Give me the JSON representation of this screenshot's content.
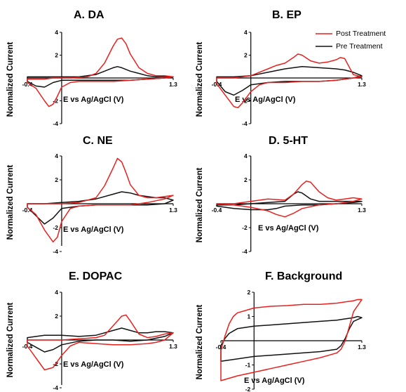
{
  "figure": {
    "legend": {
      "placement": "top-right",
      "entries": [
        {
          "name": "Post Treatment",
          "color": "#e8211f"
        },
        {
          "name": "Pre Treatment",
          "color": "#111111"
        }
      ]
    }
  },
  "chart_data": [
    {
      "type": "line",
      "title": "A. DA",
      "xlabel": "E vs Ag/AgCl (V)",
      "ylabel": "Normalized Current",
      "xlim": [
        -0.4,
        1.3
      ],
      "ylim": [
        -4,
        4
      ],
      "x_ticks": [
        "-0.4",
        "1.3"
      ],
      "y_ticks": [
        "4",
        "2",
        "-2",
        "-4"
      ],
      "grid": false,
      "series": [
        {
          "name": "Post Treatment",
          "color": "#e8211f",
          "x": [
            -0.4,
            -0.3,
            -0.2,
            -0.1,
            0.0,
            0.1,
            0.2,
            0.3,
            0.4,
            0.5,
            0.6,
            0.65,
            0.7,
            0.75,
            0.8,
            0.9,
            1.0,
            1.1,
            1.2,
            1.3,
            1.2,
            1.0,
            0.8,
            0.6,
            0.4,
            0.2,
            0.1,
            0.0,
            -0.05,
            -0.1,
            -0.15,
            -0.2,
            -0.3,
            -0.4
          ],
          "y": [
            -0.1,
            -0.1,
            -0.1,
            0.0,
            0.0,
            0.0,
            0.05,
            0.1,
            0.4,
            1.3,
            2.8,
            3.4,
            3.5,
            3.0,
            2.1,
            0.9,
            0.4,
            0.2,
            0.2,
            0.1,
            0.0,
            -0.1,
            -0.2,
            -0.3,
            -0.3,
            -0.3,
            -0.4,
            -0.8,
            -1.6,
            -2.3,
            -2.5,
            -2.0,
            -0.9,
            -0.4
          ]
        },
        {
          "name": "Pre Treatment",
          "color": "#111111",
          "x": [
            -0.4,
            -0.2,
            0.0,
            0.2,
            0.4,
            0.5,
            0.6,
            0.65,
            0.7,
            0.8,
            0.9,
            1.0,
            1.1,
            1.2,
            1.3,
            1.2,
            1.0,
            0.8,
            0.6,
            0.4,
            0.2,
            0.0,
            -0.1,
            -0.2,
            -0.3,
            -0.4
          ],
          "y": [
            0.1,
            0.1,
            0.1,
            0.1,
            0.3,
            0.6,
            0.9,
            1.0,
            0.9,
            0.6,
            0.4,
            0.2,
            0.1,
            0.1,
            0.1,
            0.0,
            -0.1,
            -0.2,
            -0.2,
            -0.2,
            -0.2,
            -0.2,
            -0.4,
            -0.8,
            -0.7,
            -0.3
          ]
        }
      ]
    },
    {
      "type": "line",
      "title": "B. EP",
      "xlabel": "E vs Ag/AgCl (V)",
      "ylabel": "Normalized Current",
      "xlim": [
        -0.4,
        1.3
      ],
      "ylim": [
        -4,
        4
      ],
      "x_ticks": [
        "-0.4",
        "1.3"
      ],
      "y_ticks": [
        "4",
        "2",
        "-2",
        "-4"
      ],
      "grid": false,
      "series": [
        {
          "name": "Post Treatment",
          "color": "#e8211f",
          "x": [
            -0.4,
            -0.2,
            0.0,
            0.2,
            0.3,
            0.4,
            0.5,
            0.55,
            0.6,
            0.7,
            0.8,
            0.9,
            1.0,
            1.05,
            1.1,
            1.15,
            1.2,
            1.3,
            1.2,
            1.0,
            0.8,
            0.6,
            0.4,
            0.2,
            0.1,
            0.0,
            -0.1,
            -0.15,
            -0.2,
            -0.3,
            -0.4
          ],
          "y": [
            0.0,
            0.0,
            0.2,
            0.8,
            1.1,
            1.3,
            1.8,
            2.1,
            2.0,
            1.5,
            1.3,
            1.4,
            1.6,
            1.8,
            1.7,
            1.0,
            0.3,
            0.1,
            0.0,
            -0.2,
            -0.3,
            -0.3,
            -0.4,
            -0.4,
            -0.6,
            -1.2,
            -2.2,
            -2.6,
            -2.5,
            -1.5,
            -0.5
          ]
        },
        {
          "name": "Pre Treatment",
          "color": "#111111",
          "x": [
            -0.4,
            -0.2,
            0.0,
            0.2,
            0.4,
            0.6,
            0.8,
            1.0,
            1.1,
            1.2,
            1.3,
            1.2,
            1.0,
            0.8,
            0.6,
            0.4,
            0.2,
            0.0,
            -0.1,
            -0.2,
            -0.3,
            -0.4
          ],
          "y": [
            0.1,
            0.1,
            0.2,
            0.5,
            0.8,
            1.0,
            0.9,
            0.8,
            0.7,
            0.5,
            0.2,
            0.0,
            -0.2,
            -0.3,
            -0.3,
            -0.3,
            -0.4,
            -0.6,
            -1.1,
            -1.5,
            -1.2,
            -0.3
          ]
        }
      ]
    },
    {
      "type": "line",
      "title": "C. NE",
      "xlabel": "E vs Ag/AgCl (V)",
      "ylabel": "Normalized Current",
      "xlim": [
        -0.4,
        1.3
      ],
      "ylim": [
        -4,
        4
      ],
      "x_ticks": [
        "-0.4",
        "1.3"
      ],
      "y_ticks": [
        "4",
        "2",
        "-2",
        "-4"
      ],
      "grid": false,
      "series": [
        {
          "name": "Post Treatment",
          "color": "#e8211f",
          "x": [
            -0.4,
            -0.2,
            0.0,
            0.2,
            0.4,
            0.5,
            0.6,
            0.65,
            0.7,
            0.75,
            0.8,
            0.9,
            1.0,
            1.1,
            1.2,
            1.3,
            1.2,
            1.0,
            0.8,
            0.6,
            0.4,
            0.2,
            0.1,
            0.0,
            -0.05,
            -0.1,
            -0.2,
            -0.3,
            -0.4
          ],
          "y": [
            0.0,
            0.0,
            0.0,
            0.1,
            0.5,
            1.5,
            3.0,
            3.8,
            3.5,
            2.6,
            1.6,
            0.7,
            0.5,
            0.5,
            0.6,
            0.7,
            0.4,
            0.1,
            -0.1,
            -0.1,
            -0.1,
            -0.2,
            -0.4,
            -1.5,
            -2.8,
            -3.2,
            -2.2,
            -0.9,
            -0.3
          ]
        },
        {
          "name": "Pre Treatment",
          "color": "#111111",
          "x": [
            -0.4,
            -0.2,
            0.0,
            0.2,
            0.4,
            0.6,
            0.7,
            0.8,
            0.9,
            1.0,
            1.1,
            1.2,
            1.3,
            1.2,
            1.0,
            0.8,
            0.6,
            0.4,
            0.2,
            0.0,
            -0.1,
            -0.2,
            -0.3,
            -0.4
          ],
          "y": [
            0.0,
            0.0,
            0.1,
            0.2,
            0.4,
            0.8,
            1.0,
            0.9,
            0.7,
            0.6,
            0.5,
            0.5,
            0.3,
            0.0,
            -0.1,
            -0.1,
            -0.1,
            -0.1,
            -0.2,
            -0.4,
            -1.2,
            -1.7,
            -1.0,
            -0.3
          ]
        }
      ]
    },
    {
      "type": "line",
      "title": "D. 5-HT",
      "xlabel": "E vs Ag/AgCl (V)",
      "ylabel": "Normalized Current",
      "xlim": [
        -0.4,
        1.3
      ],
      "ylim": [
        -4,
        4
      ],
      "x_ticks": [
        "-0.4",
        "1.3"
      ],
      "y_ticks": [
        "4",
        "2",
        "-2",
        "-4"
      ],
      "grid": false,
      "series": [
        {
          "name": "Post Treatment",
          "color": "#e8211f",
          "x": [
            -0.4,
            -0.2,
            0.0,
            0.2,
            0.4,
            0.5,
            0.6,
            0.65,
            0.7,
            0.8,
            0.9,
            1.0,
            1.1,
            1.2,
            1.3,
            1.2,
            1.0,
            0.8,
            0.6,
            0.5,
            0.4,
            0.3,
            0.2,
            0.0,
            -0.2,
            -0.4
          ],
          "y": [
            0.0,
            0.0,
            0.2,
            0.4,
            0.3,
            0.8,
            1.6,
            1.9,
            1.8,
            1.0,
            0.5,
            0.3,
            0.4,
            0.5,
            0.4,
            0.2,
            0.0,
            -0.1,
            -0.4,
            -0.8,
            -1.1,
            -0.9,
            -0.6,
            -0.3,
            -0.1,
            0.0
          ]
        },
        {
          "name": "Pre Treatment",
          "color": "#111111",
          "x": [
            -0.4,
            -0.2,
            0.0,
            0.2,
            0.4,
            0.5,
            0.55,
            0.6,
            0.7,
            0.8,
            1.0,
            1.2,
            1.3,
            1.2,
            1.0,
            0.8,
            0.6,
            0.4,
            0.3,
            0.2,
            0.0,
            -0.2,
            -0.4
          ],
          "y": [
            -0.1,
            -0.1,
            0.0,
            0.1,
            0.2,
            0.8,
            1.0,
            0.9,
            0.4,
            0.2,
            0.2,
            0.2,
            0.2,
            0.1,
            0.0,
            -0.1,
            -0.1,
            -0.2,
            -0.4,
            -0.5,
            -0.5,
            -0.4,
            -0.2
          ]
        }
      ]
    },
    {
      "type": "line",
      "title": "E. DOPAC",
      "xlabel": "E vs Ag/AgCl (V)",
      "ylabel": "Normalized Current",
      "xlim": [
        -0.4,
        1.3
      ],
      "ylim": [
        -4,
        4
      ],
      "x_ticks": [
        "-0.4",
        "1.3"
      ],
      "y_ticks": [
        "4",
        "2",
        "-2",
        "-4"
      ],
      "grid": false,
      "series": [
        {
          "name": "Post Treatment",
          "color": "#e8211f",
          "x": [
            -0.4,
            -0.2,
            0.0,
            0.2,
            0.4,
            0.5,
            0.6,
            0.7,
            0.75,
            0.8,
            0.9,
            1.0,
            1.1,
            1.2,
            1.3,
            1.2,
            1.1,
            1.0,
            0.8,
            0.6,
            0.4,
            0.2,
            0.1,
            0.0,
            -0.1,
            -0.2,
            -0.3,
            -0.4
          ],
          "y": [
            0.0,
            0.0,
            0.0,
            0.1,
            0.2,
            0.4,
            1.2,
            2.0,
            2.1,
            1.6,
            0.5,
            0.2,
            0.3,
            0.5,
            0.6,
            0.0,
            -0.2,
            -0.3,
            -0.4,
            -0.4,
            -0.3,
            -0.2,
            -0.5,
            -1.3,
            -2.3,
            -2.5,
            -1.5,
            -0.5
          ]
        },
        {
          "name": "Pre Treatment",
          "color": "#111111",
          "x": [
            -0.4,
            -0.2,
            0.0,
            0.2,
            0.4,
            0.6,
            0.7,
            0.8,
            0.9,
            1.0,
            1.1,
            1.2,
            1.3,
            1.2,
            1.0,
            0.8,
            0.6,
            0.4,
            0.2,
            0.0,
            -0.1,
            -0.2,
            -0.3,
            -0.4
          ],
          "y": [
            0.2,
            0.4,
            0.4,
            0.3,
            0.4,
            0.8,
            1.0,
            0.8,
            0.6,
            0.6,
            0.7,
            0.7,
            0.6,
            0.3,
            0.0,
            -0.1,
            0.0,
            0.0,
            -0.1,
            -0.4,
            -0.8,
            -1.0,
            -0.6,
            -0.2
          ]
        }
      ]
    },
    {
      "type": "line",
      "title": "F. Background",
      "xlabel": "E vs Ag/AgCl (V)",
      "ylabel": "Normalized Current",
      "xlim": [
        -0.4,
        1.3
      ],
      "ylim": [
        -2,
        2
      ],
      "x_ticks": [
        "-0.4",
        "1.3"
      ],
      "y_ticks": [
        "2",
        "1",
        "-1",
        "-2"
      ],
      "grid": false,
      "series": [
        {
          "name": "Post Treatment",
          "color": "#e8211f",
          "x": [
            -0.4,
            -0.35,
            -0.3,
            -0.25,
            -0.2,
            -0.1,
            0.0,
            0.2,
            0.4,
            0.6,
            0.8,
            1.0,
            1.1,
            1.2,
            1.25,
            1.3,
            1.2,
            1.15,
            1.1,
            1.05,
            1.0,
            0.8,
            0.6,
            0.4,
            0.2,
            0.0,
            -0.2,
            -0.4
          ],
          "y": [
            -0.4,
            0.2,
            0.7,
            1.0,
            1.15,
            1.25,
            1.35,
            1.42,
            1.45,
            1.5,
            1.5,
            1.55,
            1.6,
            1.65,
            1.7,
            1.7,
            1.2,
            0.6,
            0.0,
            -0.35,
            -0.5,
            -0.7,
            -0.85,
            -1.0,
            -1.15,
            -1.3,
            -1.45,
            -1.65
          ]
        },
        {
          "name": "Pre Treatment",
          "color": "#111111",
          "x": [
            -0.4,
            -0.35,
            -0.3,
            -0.25,
            -0.2,
            -0.1,
            0.0,
            0.2,
            0.4,
            0.6,
            0.8,
            1.0,
            1.1,
            1.2,
            1.25,
            1.3,
            1.2,
            1.15,
            1.1,
            1.05,
            1.0,
            0.8,
            0.6,
            0.4,
            0.2,
            0.0,
            -0.2,
            -0.4
          ],
          "y": [
            -0.2,
            0.1,
            0.3,
            0.4,
            0.5,
            0.55,
            0.6,
            0.65,
            0.7,
            0.75,
            0.8,
            0.85,
            0.9,
            0.95,
            1.0,
            0.95,
            0.8,
            0.5,
            0.1,
            -0.2,
            -0.35,
            -0.45,
            -0.5,
            -0.55,
            -0.6,
            -0.65,
            -0.75,
            -0.85
          ]
        }
      ]
    }
  ]
}
